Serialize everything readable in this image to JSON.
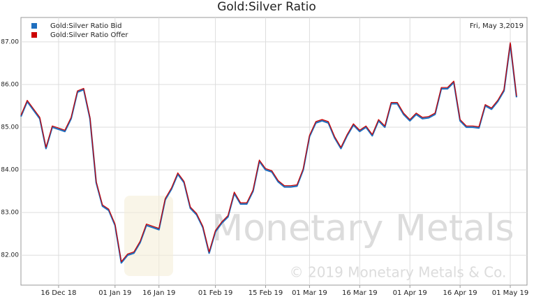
{
  "chart_data": {
    "type": "line",
    "title": "Gold:Silver Ratio",
    "annotation": "Fri, May 3,2019",
    "watermark": "Monetary Metals",
    "copyright": "© 2019 Monetary Metals & Co.",
    "categories": [
      null,
      null,
      null,
      null,
      null,
      null,
      "16 Dec 18",
      null,
      null,
      null,
      null,
      null,
      null,
      null,
      null,
      "01 Jan 19",
      null,
      null,
      null,
      null,
      null,
      null,
      "16 Jan 19",
      null,
      null,
      null,
      null,
      null,
      null,
      null,
      null,
      "01 Feb 19",
      null,
      null,
      null,
      null,
      null,
      null,
      null,
      "15 Feb 19",
      null,
      null,
      null,
      null,
      null,
      null,
      "01 Mar 19",
      null,
      null,
      null,
      null,
      null,
      null,
      null,
      "16 Mar 19",
      null,
      null,
      null,
      null,
      null,
      null,
      null,
      "01 Apr 19",
      null,
      null,
      null,
      null,
      null,
      null,
      null,
      "16 Apr 19",
      null,
      null,
      null,
      null,
      null,
      null,
      null,
      "01 May 19",
      null
    ],
    "series": [
      {
        "name": "Gold:Silver Ratio Bid",
        "color": "#1f6fbf",
        "values": [
          85.25,
          85.6,
          85.4,
          85.2,
          84.5,
          85.0,
          84.95,
          84.9,
          85.2,
          85.82,
          85.88,
          85.2,
          83.7,
          83.15,
          83.05,
          82.7,
          81.82,
          82.0,
          82.05,
          82.3,
          82.7,
          82.65,
          82.6,
          83.3,
          83.55,
          83.9,
          83.7,
          83.1,
          82.95,
          82.65,
          82.05,
          82.55,
          82.75,
          82.9,
          83.45,
          83.2,
          83.2,
          83.5,
          84.2,
          84.0,
          83.95,
          83.72,
          83.6,
          83.6,
          83.62,
          84.0,
          84.78,
          85.1,
          85.15,
          85.1,
          84.75,
          84.5,
          84.8,
          85.05,
          84.9,
          85.0,
          84.8,
          85.15,
          85.0,
          85.55,
          85.55,
          85.3,
          85.15,
          85.3,
          85.2,
          85.22,
          85.3,
          85.9,
          85.9,
          86.05,
          85.15,
          85.0,
          85.0,
          84.98,
          85.5,
          85.42,
          85.6,
          85.85,
          86.95,
          85.7
        ]
      },
      {
        "name": "Gold:Silver Ratio Offer",
        "color": "#cc0000",
        "values": [
          85.28,
          85.63,
          85.43,
          85.23,
          84.53,
          85.03,
          84.98,
          84.93,
          85.23,
          85.85,
          85.91,
          85.23,
          83.73,
          83.18,
          83.08,
          82.73,
          81.85,
          82.03,
          82.08,
          82.33,
          82.73,
          82.68,
          82.63,
          83.33,
          83.58,
          83.93,
          83.73,
          83.13,
          82.98,
          82.68,
          82.08,
          82.58,
          82.78,
          82.93,
          83.48,
          83.23,
          83.23,
          83.53,
          84.23,
          84.03,
          83.98,
          83.75,
          83.63,
          83.63,
          83.65,
          84.03,
          84.81,
          85.13,
          85.18,
          85.13,
          84.78,
          84.53,
          84.83,
          85.08,
          84.93,
          85.03,
          84.83,
          85.18,
          85.03,
          85.58,
          85.58,
          85.33,
          85.18,
          85.33,
          85.23,
          85.25,
          85.33,
          85.93,
          85.93,
          86.08,
          85.18,
          85.03,
          85.03,
          85.01,
          85.53,
          85.45,
          85.63,
          85.88,
          86.98,
          85.73
        ]
      }
    ],
    "ylim": [
      81.3,
      87.57
    ],
    "yticks": [
      {
        "value": 82,
        "label": "82.00"
      },
      {
        "value": 83,
        "label": "83.00"
      },
      {
        "value": 84,
        "label": "84.00"
      },
      {
        "value": 85,
        "label": "85.00"
      },
      {
        "value": 86,
        "label": "86.00"
      },
      {
        "value": 87,
        "label": "87.00"
      }
    ],
    "grid": true,
    "legend": "top-left"
  }
}
